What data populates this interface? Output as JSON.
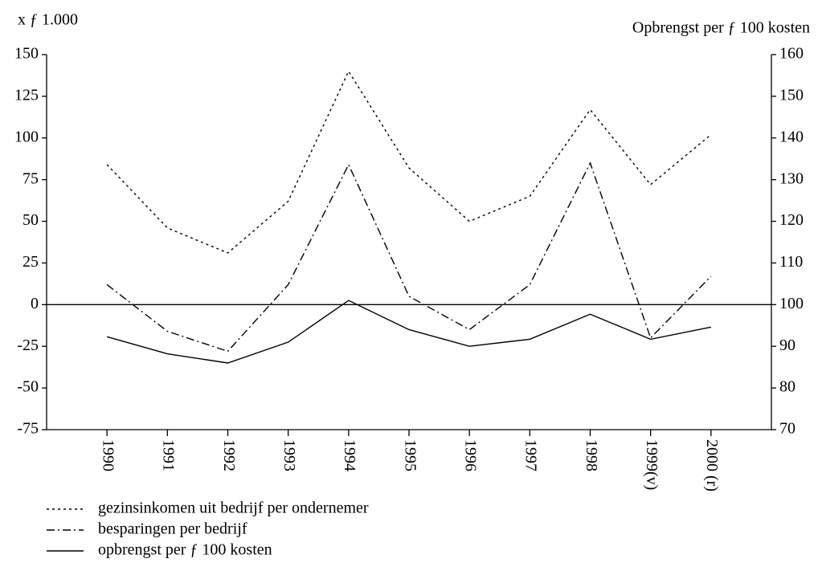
{
  "chart_data": {
    "type": "line",
    "y_label": "x ƒ 1.000",
    "y2_label": "Opbrengst per ƒ 100 kosten",
    "categories": [
      "1990",
      "1991",
      "1992",
      "1993",
      "1994",
      "1995",
      "1996",
      "1997",
      "1998",
      "1999(v)",
      "2000 (r)"
    ],
    "series": [
      {
        "name": "gezinsinkomen uit bedrijf per ondernemer",
        "color": "#000000",
        "dash": "dotted",
        "values": [
          84,
          46,
          31,
          62,
          140,
          82,
          50,
          65,
          117,
          72,
          102
        ]
      },
      {
        "name": "besparingen per bedrijf",
        "color": "#000000",
        "dash": "dashdot",
        "values": [
          12,
          -16,
          -28,
          12,
          84,
          5,
          -15,
          12,
          85,
          -20,
          17
        ]
      },
      {
        "name": "opbrengst per ƒ 100 kosten",
        "color": "#000000",
        "dash": "solid",
        "axis": "y2",
        "values": [
          92.3,
          88.2,
          86,
          91,
          101,
          94,
          90,
          91.7,
          97.7,
          91.7,
          94.6
        ]
      }
    ],
    "ylim": [
      -75,
      150
    ],
    "yticks": [
      -75,
      -50,
      -25,
      0,
      25,
      50,
      75,
      100,
      125,
      150
    ],
    "y2lim": [
      70,
      160
    ],
    "y2ticks": [
      70,
      80,
      90,
      100,
      110,
      120,
      130,
      140,
      150,
      160
    ],
    "zero_line": true
  }
}
